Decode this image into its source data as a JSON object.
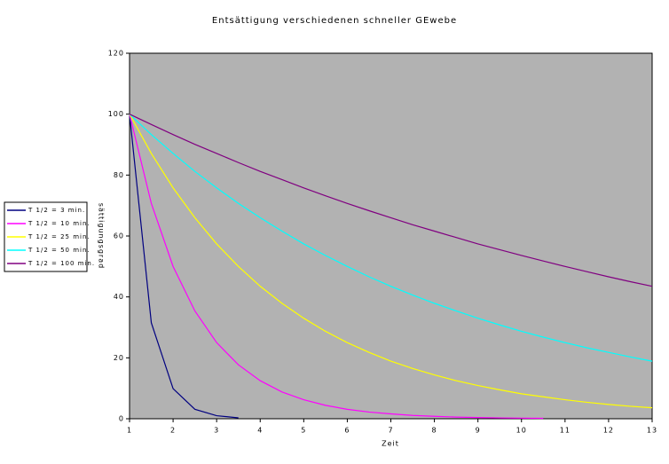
{
  "chart_data": {
    "type": "line",
    "title": "Entsättigung verschiedenen schneller GEwebe",
    "x_label": "Zeit",
    "y_label": "sättigungsgrad",
    "x": [
      1,
      1.5,
      2,
      2.5,
      3,
      3.5,
      4,
      4.5,
      5,
      5.5,
      6,
      6.5,
      7,
      7.5,
      8,
      8.5,
      9,
      9.5,
      10,
      10.5,
      11,
      11.5,
      12,
      12.5,
      13
    ],
    "xlim": [
      1,
      13
    ],
    "xticks": [
      1,
      2,
      3,
      4,
      5,
      6,
      7,
      8,
      9,
      10,
      11,
      12,
      13
    ],
    "ylim": [
      0,
      120
    ],
    "yticks": [
      0,
      20,
      40,
      60,
      80,
      100,
      120
    ],
    "plot_background": "#b2b2b2",
    "legend": "left",
    "series": [
      {
        "name": "T 1/2 = 3 min.",
        "color": "#000080",
        "values": [
          100,
          31.5,
          9.9,
          3.1,
          1.0,
          0.3,
          null,
          null,
          null,
          null,
          null,
          null,
          null,
          null,
          null,
          null,
          null,
          null,
          null,
          null,
          null,
          null,
          null,
          null,
          null
        ]
      },
      {
        "name": "T 1/2 = 10 min.",
        "color": "#ff00ff",
        "values": [
          100,
          70.7,
          50,
          35.4,
          25,
          17.7,
          12.5,
          8.8,
          6.25,
          4.4,
          3.1,
          2.2,
          1.6,
          1.1,
          0.8,
          0.55,
          0.39,
          0.28,
          0.2,
          0.14,
          null,
          null,
          null,
          null,
          null
        ]
      },
      {
        "name": "T 1/2 = 25 min.",
        "color": "#ffff00",
        "values": [
          100,
          87.1,
          75.8,
          66.0,
          57.4,
          50.0,
          43.5,
          37.9,
          33.0,
          28.7,
          25.0,
          21.8,
          18.9,
          16.5,
          14.4,
          12.5,
          10.9,
          9.5,
          8.2,
          7.2,
          6.25,
          5.4,
          4.7,
          4.1,
          3.6
        ]
      },
      {
        "name": "T 1/2 = 50 min.",
        "color": "#00ffff",
        "values": [
          100,
          93.3,
          87.1,
          81.2,
          75.8,
          70.7,
          66.0,
          61.6,
          57.4,
          53.6,
          50.0,
          46.6,
          43.5,
          40.6,
          37.9,
          35.4,
          33.0,
          30.8,
          28.7,
          26.8,
          25.0,
          23.3,
          21.8,
          20.3,
          18.9
        ]
      },
      {
        "name": "T 1/2 = 100 min.",
        "color": "#800080",
        "values": [
          100,
          96.6,
          93.3,
          90.1,
          87.1,
          84.1,
          81.2,
          78.5,
          75.8,
          73.2,
          70.7,
          68.3,
          66.0,
          63.7,
          61.6,
          59.5,
          57.4,
          55.5,
          53.6,
          51.8,
          50.0,
          48.3,
          46.6,
          45.0,
          43.5
        ]
      }
    ]
  }
}
